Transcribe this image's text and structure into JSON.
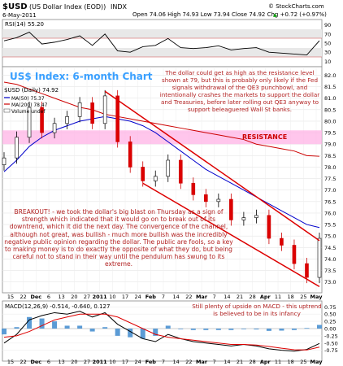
{
  "header": {
    "symbol": "$USD",
    "description": "(US Dollar Index (EOD))",
    "exchange": "INDX",
    "date": "6-May-2011",
    "ohlc": "Open 74.06  High 74.93  Low 73.94  Close 74.92  Chg +0.72 (+0.97%)",
    "chg_arrow": "▲",
    "watermark": "© StockCharts.com"
  },
  "rsi": {
    "label": "RSI(14) 55.20",
    "levels": [
      "90",
      "70",
      "50",
      "30",
      "10"
    ]
  },
  "price_panel": {
    "title": "US$ Index: 6-month Chart",
    "legend": [
      "$USD (Daily) 74.92",
      "MA(50) 75.37",
      "MA(200) 78.47",
      "Volume undef"
    ],
    "resistance_label": "RESISTANCE",
    "y_ticks": [
      "82.0",
      "81.5",
      "81.0",
      "80.5",
      "80.0",
      "79.5",
      "79.0",
      "78.5",
      "78.0",
      "77.5",
      "77.0",
      "76.5",
      "76.0",
      "75.5",
      "75.0",
      "74.5",
      "74.0",
      "73.5",
      "73.0"
    ],
    "x_ticks": [
      "15",
      "22",
      "Dec",
      "6",
      "13",
      "20",
      "27",
      "2011",
      "10",
      "17",
      "24",
      "Feb",
      "7",
      "14",
      "22",
      "Mar",
      "7",
      "14",
      "21",
      "28",
      "Apr",
      "11",
      "18",
      "25",
      "May"
    ],
    "annotation_top": "The dollar could get as high as the resistance level shown at 79, but this is probably only likely if the Fed signals withdrawal of the QE3 punchbowl, and intentionally crashes the markets to support the dollar and Treasuries, before later rolling out QE3 anyway to support beleaguered Wall St banks.",
    "annotation_left": "BREAKOUT! - we took the dollar's big blast on Thursday as a sign of strength which indicated that it would go on to break out of its downtrend, which it did the next day. The convergence of the channel, although not great, was bullish - much more bullish was the incredibly negative public opinion regarding the dollar. The public are fools, so a key to making money is to do exactly the opposite of what they do, but being careful not to stand in their way until the pendulum has swung to its extreme."
  },
  "macd": {
    "label": "MACD(12,26,9) -0.514, -0.640, 0.127",
    "annotation": "Still plenty of upside on MACD - this uptrend is believed to be in its infancy",
    "y_ticks": [
      "0.75",
      "0.50",
      "0.25",
      "0.00",
      "-0.25",
      "-0.50",
      "-0.75"
    ],
    "x_ticks": [
      "15",
      "22",
      "Dec",
      "6",
      "13",
      "20",
      "27",
      "2011",
      "10",
      "17",
      "24",
      "Feb",
      "7",
      "14",
      "22",
      "Mar",
      "7",
      "14",
      "21",
      "28",
      "Apr",
      "11",
      "18",
      "25",
      "May"
    ]
  },
  "chart_data": {
    "type": "line",
    "title": "US$ Index: 6-month Chart",
    "xlabel": "",
    "ylabel": "",
    "ylim": [
      72.6,
      82.3
    ],
    "x": [
      "Nov 15",
      "Nov 22",
      "Dec 1",
      "Dec 6",
      "Dec 13",
      "Dec 20",
      "Dec 27",
      "Jan 3",
      "Jan 10",
      "Jan 17",
      "Jan 24",
      "Feb 1",
      "Feb 7",
      "Feb 14",
      "Feb 22",
      "Mar 1",
      "Mar 7",
      "Mar 14",
      "Mar 21",
      "Mar 28",
      "Apr 4",
      "Apr 11",
      "Apr 18",
      "Apr 25",
      "May 2",
      "May 6"
    ],
    "series": [
      {
        "name": "$USD (Daily) 74.92",
        "values": [
          78.4,
          79.3,
          80.6,
          79.5,
          79.9,
          80.2,
          80.8,
          79.9,
          81.1,
          79.1,
          78.0,
          77.4,
          77.6,
          78.3,
          77.3,
          76.8,
          76.5,
          76.6,
          75.7,
          75.8,
          75.9,
          74.9,
          74.6,
          73.8,
          73.2,
          74.9
        ]
      },
      {
        "name": "MA(50) 75.37",
        "values": [
          77.8,
          78.3,
          78.9,
          79.3,
          79.6,
          79.8,
          80.0,
          80.1,
          80.2,
          80.1,
          80.0,
          79.8,
          79.5,
          79.1,
          78.7,
          78.3,
          77.9,
          77.6,
          77.3,
          77.0,
          76.7,
          76.4,
          76.1,
          75.8,
          75.5,
          75.37
        ]
      },
      {
        "name": "MA(200) 78.47",
        "values": [
          81.7,
          81.6,
          81.4,
          81.2,
          81.0,
          80.8,
          80.6,
          80.5,
          80.3,
          80.2,
          80.1,
          80.0,
          79.9,
          79.8,
          79.7,
          79.6,
          79.5,
          79.4,
          79.3,
          79.2,
          79.0,
          78.9,
          78.8,
          78.7,
          78.5,
          78.47
        ]
      }
    ],
    "resistance_band": [
      79.0,
      79.6
    ],
    "channel": {
      "upper": [
        [
          "Jan 10",
          81.3
        ],
        [
          "May 6",
          74.8
        ]
      ],
      "lower": [
        [
          "Feb 1",
          77.3
        ],
        [
          "May 6",
          72.8
        ]
      ]
    },
    "rsi_series": [
      {
        "name": "RSI(14) 55.20",
        "values": [
          55,
          62,
          74,
          48,
          52,
          58,
          66,
          45,
          70,
          33,
          30,
          42,
          45,
          60,
          40,
          38,
          40,
          44,
          35,
          38,
          40,
          30,
          28,
          26,
          24,
          55.2
        ]
      }
    ],
    "macd_series": [
      {
        "name": "MACD(12,26,9)",
        "values": [
          -0.5,
          -0.2,
          0.3,
          0.45,
          0.55,
          0.5,
          0.6,
          0.4,
          0.55,
          0.15,
          -0.1,
          -0.35,
          -0.45,
          -0.2,
          -0.35,
          -0.45,
          -0.5,
          -0.55,
          -0.6,
          -0.55,
          -0.6,
          -0.7,
          -0.75,
          -0.78,
          -0.72,
          -0.514
        ]
      },
      {
        "name": "Signal",
        "values": [
          -0.3,
          -0.25,
          -0.1,
          0.1,
          0.3,
          0.4,
          0.5,
          0.5,
          0.5,
          0.4,
          0.2,
          0.0,
          -0.2,
          -0.3,
          -0.35,
          -0.4,
          -0.45,
          -0.5,
          -0.55,
          -0.55,
          -0.57,
          -0.62,
          -0.68,
          -0.73,
          -0.74,
          -0.64
        ]
      }
    ],
    "macd_hist": [
      -0.2,
      0.05,
      0.4,
      0.35,
      0.25,
      0.1,
      0.1,
      -0.1,
      0.05,
      -0.25,
      -0.3,
      -0.35,
      -0.25,
      0.1,
      0.0,
      -0.05,
      -0.05,
      -0.05,
      -0.05,
      0.0,
      -0.03,
      -0.08,
      -0.07,
      -0.05,
      0.02,
      0.127
    ]
  }
}
